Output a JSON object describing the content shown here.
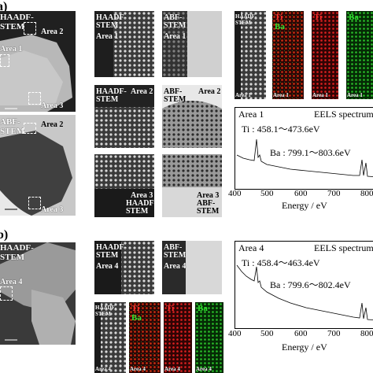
{
  "panel_a": {
    "label": "a)",
    "overview1": {
      "line1": "HAADF-",
      "line2": "STEM",
      "areas": [
        "Area 2",
        "Area 1",
        "Area 3"
      ]
    },
    "overview2": {
      "line1": "ABF-",
      "line2": "STEM",
      "areas": [
        "Area 2",
        "Area 3"
      ]
    },
    "grid": {
      "r1c1": {
        "title": "HAADF-\nSTEM",
        "area": "Area 1"
      },
      "r1c2": {
        "title": "ABF-\nSTEM",
        "area": "Area 1"
      },
      "r2c1": {
        "title": "HAADF-\nSTEM",
        "area": "Area 2"
      },
      "r2c2": {
        "title": "ABF-\nSTEM",
        "area": "Area 2"
      },
      "r3c1": {
        "title": "HAADF-\nSTEM",
        "area": "Area 3"
      },
      "r3c2": {
        "title": "ABF-\nSTEM",
        "area": "Area 3"
      }
    },
    "maps": {
      "stem": "HAADF-\nSTEM",
      "ti": "Ti",
      "ba": "Ba",
      "area": "Area 1"
    },
    "chart": {
      "area": "Area 1",
      "title": "EELS spectrum",
      "ti": "Ti : 458.1〜473.6eV",
      "ba": "Ba : 799.1〜803.6eV"
    }
  },
  "panel_b": {
    "label": "b)",
    "overview": {
      "line1": "HAADF-",
      "line2": "STEM",
      "area": "Area 4"
    },
    "grid": {
      "c1": {
        "title": "HAADF-\nSTEM",
        "area": "Area 4"
      },
      "c2": {
        "title": "ABF-\nSTEM",
        "area": "Area 4"
      }
    },
    "maps": {
      "stem": "HAADF-\nSTEM",
      "ti": "Ti",
      "ba": "Ba",
      "area": "Area 4"
    },
    "chart": {
      "area": "Area 4",
      "title": "EELS spectrum",
      "ti": "Ti : 458.4〜463.4eV",
      "ba": "Ba : 799.6〜802.4eV"
    }
  },
  "axis": {
    "xlabel": "Energy / eV",
    "ticks": [
      "400",
      "500",
      "600",
      "700",
      "800"
    ]
  },
  "colors": {
    "ti": "#e02020",
    "ba": "#20c020",
    "background": "#ffffff"
  }
}
